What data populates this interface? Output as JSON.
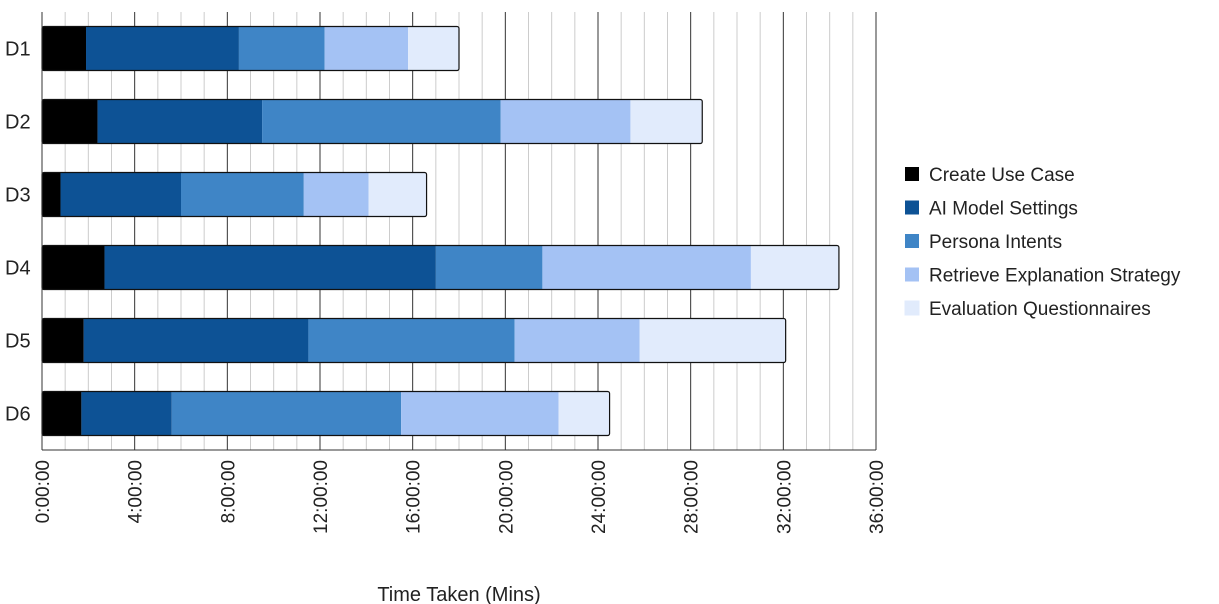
{
  "chart_data": {
    "type": "bar",
    "orientation": "horizontal",
    "stacked": true,
    "categories": [
      "D1",
      "D2",
      "D3",
      "D4",
      "D5",
      "D6"
    ],
    "series": [
      {
        "name": "Create Use Case",
        "color": "#000000",
        "values": [
          1.9,
          2.4,
          0.8,
          2.7,
          1.8,
          1.7
        ]
      },
      {
        "name": "AI Model Settings",
        "color": "#0d5295",
        "values": [
          6.6,
          7.1,
          5.2,
          14.3,
          9.7,
          3.9
        ]
      },
      {
        "name": "Persona Intents",
        "color": "#3f85c6",
        "values": [
          3.7,
          10.3,
          5.3,
          4.6,
          8.9,
          9.9
        ]
      },
      {
        "name": "Retrieve Explanation Strategy",
        "color": "#a4c2f4",
        "values": [
          3.6,
          5.6,
          2.8,
          9.0,
          5.4,
          6.8
        ]
      },
      {
        "name": "Evaluation Questionnaires",
        "color": "#e1ebfc",
        "values": [
          2.2,
          3.1,
          2.5,
          3.8,
          6.3,
          2.2
        ]
      }
    ],
    "xlim": [
      0,
      36
    ],
    "x_ticks": [
      "0:00:00",
      "4:00:00",
      "8:00:00",
      "12:00:00",
      "16:00:00",
      "20:00:00",
      "24:00:00",
      "28:00:00",
      "32:00:00",
      "36:00:00"
    ],
    "xlabel": "Time Taken (Mins)",
    "ylabel": "",
    "grid": true,
    "legend_position": "right"
  }
}
